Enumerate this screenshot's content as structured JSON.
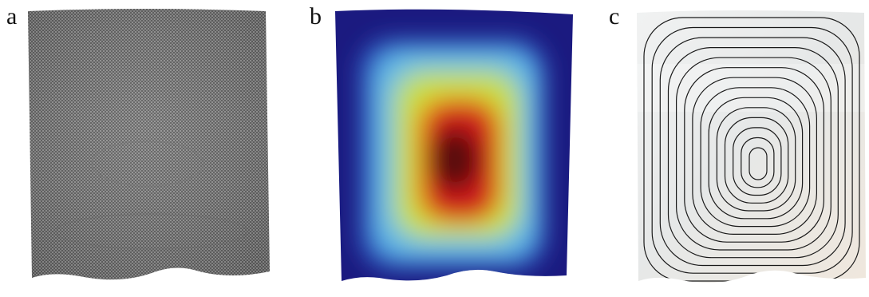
{
  "panels": [
    {
      "label": "a",
      "view": "mesh",
      "colors": {
        "fill": "#8f8f8f",
        "wire": "#3a3a3a"
      }
    },
    {
      "label": "b",
      "view": "heatmap",
      "colors": {
        "low": "#1b1a80",
        "mid_low": "#5fb6e8",
        "mid": "#c9de3a",
        "high": "#d01c1c",
        "peak": "#5a0808"
      }
    },
    {
      "label": "c",
      "view": "contour-lines",
      "colors": {
        "surface": "#eceeef",
        "contour": "#1a1a1a"
      },
      "contour_count": 14
    }
  ]
}
